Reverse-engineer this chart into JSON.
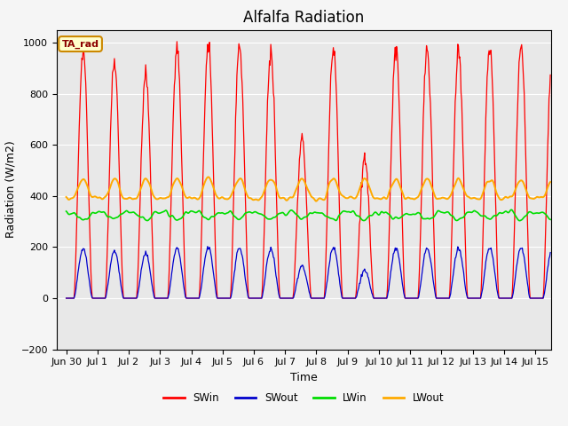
{
  "title": "Alfalfa Radiation",
  "xlabel": "Time",
  "ylabel": "Radiation (W/m2)",
  "ylim": [
    -200,
    1050
  ],
  "xlim_days": [
    -0.3,
    15.5
  ],
  "annotation": "TA_rad",
  "legend_labels": [
    "SWin",
    "SWout",
    "LWin",
    "LWout"
  ],
  "legend_colors": [
    "#ff0000",
    "#0000cc",
    "#00dd00",
    "#ffaa00"
  ],
  "background_color": "#e8e8e8",
  "fig_facecolor": "#f5f5f5",
  "xtick_labels": [
    "Jun 30",
    "Jul 1",
    "Jul 2",
    "Jul 3",
    "Jul 4",
    "Jul 5",
    "Jul 6",
    "Jul 7",
    "Jul 8",
    "Jul 9",
    "Jul 10",
    "Jul 11",
    "Jul 12",
    "Jul 13",
    "Jul 14",
    "Jul 15"
  ],
  "title_fontsize": 12,
  "axis_fontsize": 9,
  "tick_fontsize": 8,
  "cloud_factors": [
    0.97,
    0.92,
    0.88,
    0.99,
    0.99,
    0.99,
    0.96,
    0.62,
    0.98,
    0.55,
    0.99,
    0.98,
    0.97,
    0.99,
    0.99,
    0.98
  ],
  "swin_peak": 1000,
  "swout_ratio": 0.2,
  "lwin_base": 335,
  "lwout_base": 390
}
